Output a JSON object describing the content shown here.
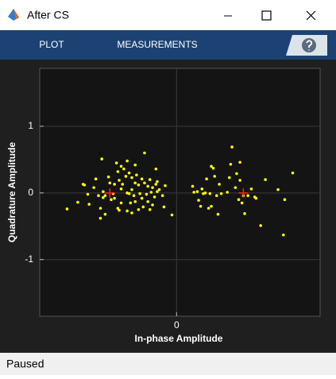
{
  "window": {
    "title": "After CS"
  },
  "toolbar": {
    "tabs": [
      "PLOT",
      "MEASUREMENTS"
    ]
  },
  "status": "Paused",
  "chart_data": {
    "type": "scatter",
    "xlabel": "In-phase Amplitude",
    "ylabel": "Quadrature Amplitude",
    "xlim": [
      -2.05,
      2.15
    ],
    "ylim": [
      -1.85,
      1.87
    ],
    "xticks": [
      0
    ],
    "yticks": [
      -1,
      0,
      1
    ],
    "grid": true,
    "color": "#ffff00",
    "x": [
      -1.64,
      -1.4,
      -1.38,
      -1.48,
      -1.31,
      -1.24,
      -1.21,
      -1.12,
      -1.17,
      -1.14,
      -1.1,
      -1.07,
      -1.14,
      -1.07,
      -1.02,
      -1.0,
      -0.98,
      -0.93,
      -0.9,
      -0.88,
      -0.88,
      -0.86,
      -0.83,
      -0.83,
      -0.81,
      -0.79,
      -0.76,
      -0.74,
      -0.74,
      -0.71,
      -0.71,
      -0.69,
      -0.67,
      -0.67,
      -0.64,
      -0.62,
      -0.62,
      -0.6,
      -0.57,
      -0.57,
      -0.55,
      -0.52,
      -0.5,
      -0.48,
      -0.48,
      -0.45,
      -0.43,
      -0.4,
      -0.4,
      -0.38,
      -0.36,
      -0.33,
      -0.31,
      -0.31,
      -0.29,
      -0.29,
      -0.26,
      -0.21,
      -0.19,
      -0.17,
      -0.07,
      -0.67,
      -0.93,
      -0.83,
      -1.33,
      -0.95,
      -0.86,
      -1.1,
      -0.74,
      -0.52,
      -0.62,
      -0.43,
      -0.36,
      0.24,
      0.26,
      0.31,
      0.33,
      0.36,
      0.38,
      0.4,
      0.43,
      0.45,
      0.48,
      0.5,
      0.52,
      0.52,
      0.55,
      0.57,
      0.6,
      0.62,
      0.64,
      0.67,
      0.76,
      0.79,
      0.81,
      0.83,
      0.88,
      0.9,
      0.93,
      0.95,
      0.95,
      0.98,
      1.0,
      1.02,
      1.07,
      1.12,
      1.17,
      1.19,
      1.26,
      1.33,
      1.52,
      1.6,
      1.62,
      1.74
    ],
    "values": [
      -0.24,
      0.13,
      0.12,
      -0.14,
      -0.17,
      0.08,
      0.21,
      0.51,
      -0.04,
      -0.23,
      0.02,
      -0.04,
      -0.38,
      -0.32,
      0.24,
      0.15,
      -0.1,
      0.13,
      0.45,
      0.32,
      -0.23,
      -0.26,
      0.4,
      0.06,
      0.13,
      0.36,
      0.25,
      0.48,
      0,
      0.3,
      -0.01,
      -0.15,
      0.23,
      0.05,
      -0.04,
      0.15,
      -0.13,
      0.27,
      0.12,
      -0.25,
      -0.01,
      -0.08,
      -0.21,
      0.6,
      0.15,
      -0.02,
      -0.13,
      0.2,
      -0.25,
      0.01,
      0.08,
      -0.06,
      0.36,
      0.13,
      0.17,
      0.02,
      0.05,
      -0.04,
      -0.21,
      0.11,
      -0.33,
      -0.3,
      -0.08,
      -0.15,
      -0.02,
      -0.01,
      0.19,
      -0.07,
      -0.27,
      0.21,
      0.42,
      0.1,
      -0.18,
      0.1,
      0.01,
      0.02,
      -0.11,
      -0.2,
      0.06,
      -0.01,
      0,
      0.21,
      -0.23,
      -0.01,
      0.4,
      -0.2,
      0.37,
      0.25,
      -0.04,
      -0.32,
      0.13,
      -0.01,
      0.01,
      0.23,
      0.43,
      0.69,
      0.08,
      0.29,
      -0.1,
      0.46,
      0.19,
      -0.15,
      -0.04,
      -0.31,
      -0.04,
      0.06,
      -0.06,
      -0.08,
      -0.49,
      0.2,
      0.05,
      -0.63,
      -0.1,
      0.3
    ],
    "reference": {
      "x": [
        -1,
        1
      ],
      "values": [
        0,
        0
      ],
      "color": "#ff2020"
    }
  }
}
